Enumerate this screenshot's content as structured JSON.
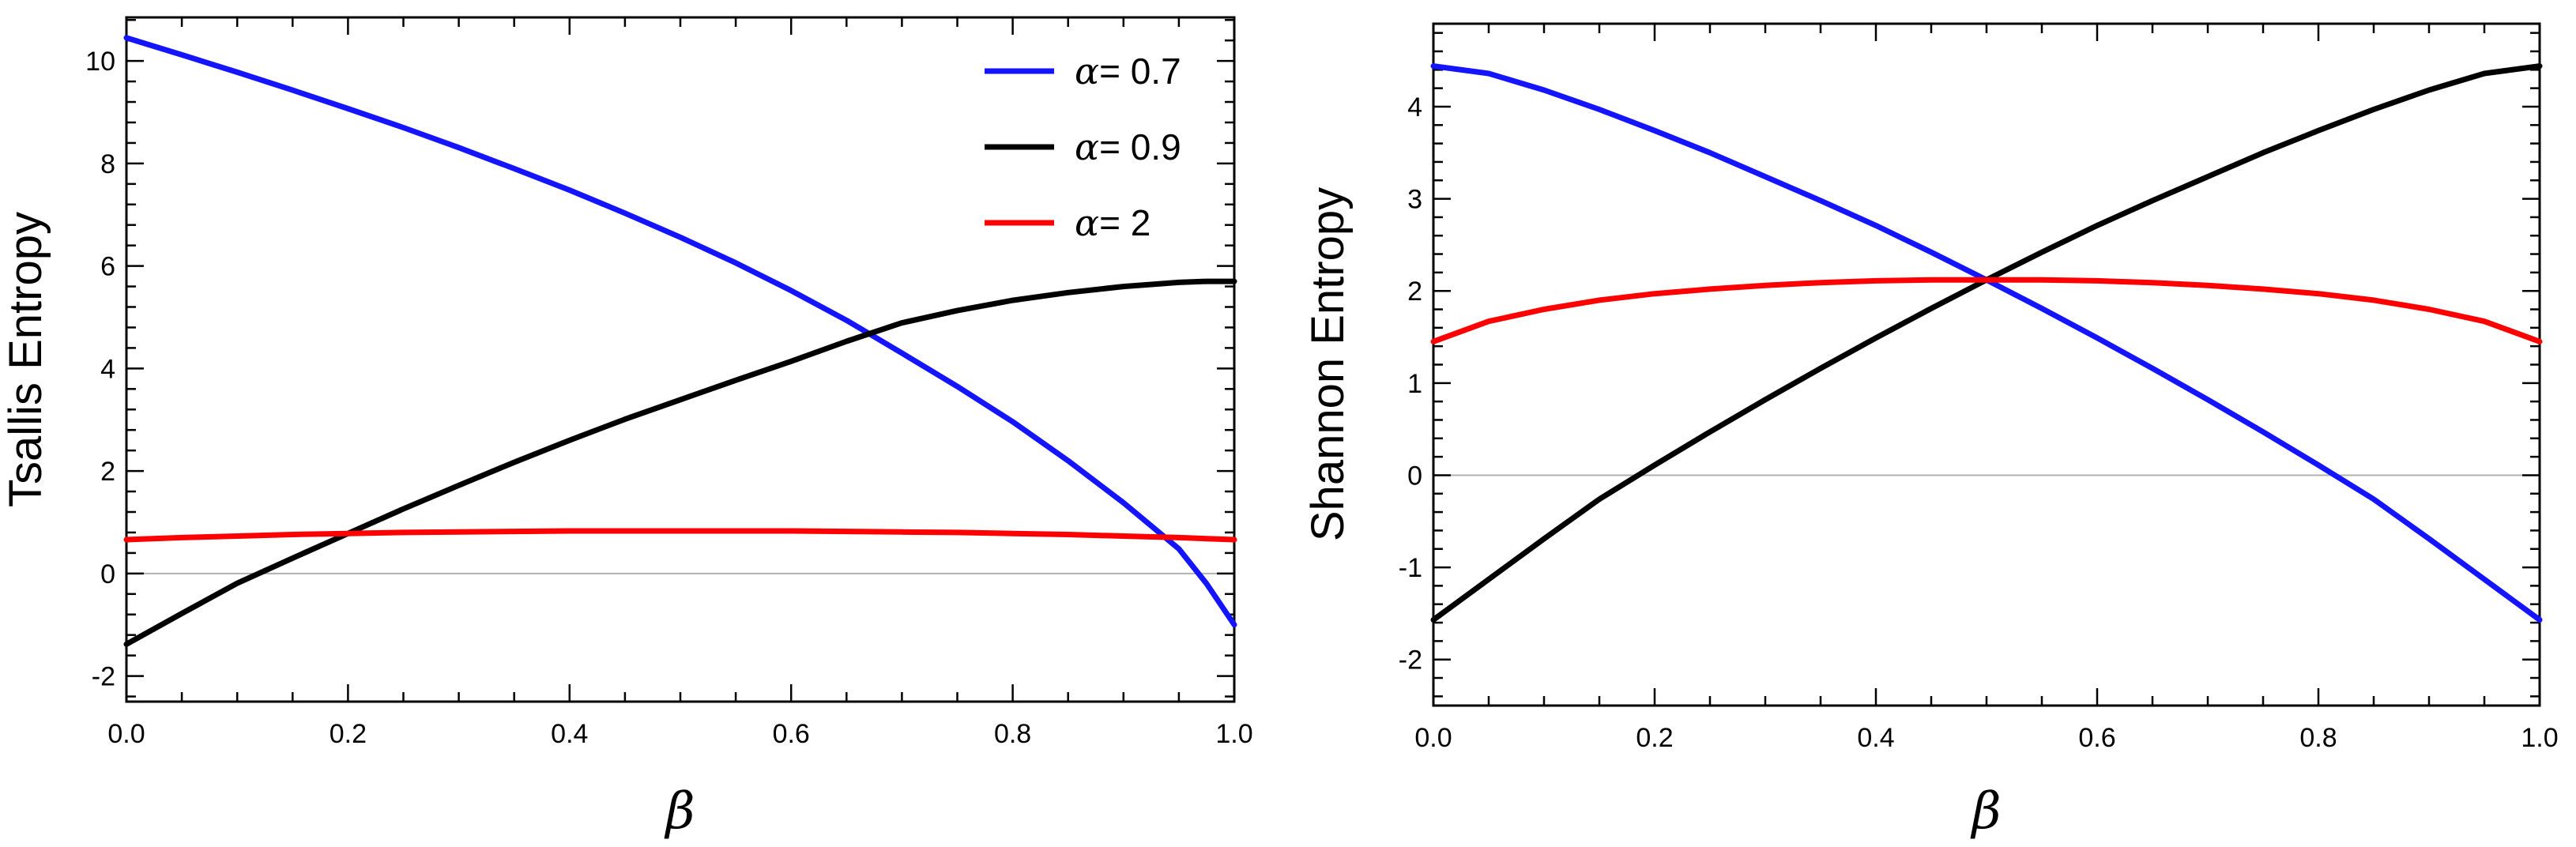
{
  "chart_data": [
    {
      "type": "line",
      "title": "",
      "xlabel": "β",
      "ylabel": "Tsallis Entropy",
      "xlim": [
        0,
        1
      ],
      "ylim": [
        -2.5,
        10.85
      ],
      "x_ticks": [
        0.0,
        0.2,
        0.4,
        0.6,
        0.8,
        1.0
      ],
      "x_tick_labels": [
        "0.0",
        "0.2",
        "0.4",
        "0.6",
        "0.8",
        "1.0"
      ],
      "y_ticks": [
        -2,
        0,
        2,
        4,
        6,
        8,
        10
      ],
      "y_tick_labels": [
        "-2",
        "0",
        "2",
        "4",
        "6",
        "8",
        "10"
      ],
      "reference_line_y": 0,
      "legend": {
        "position": "top-right",
        "symbol": "α",
        "separator": "= "
      },
      "x": [
        0.0,
        0.05,
        0.1,
        0.15,
        0.2,
        0.25,
        0.3,
        0.35,
        0.4,
        0.45,
        0.5,
        0.55,
        0.6,
        0.65,
        0.7,
        0.75,
        0.8,
        0.85,
        0.9,
        0.95,
        0.975,
        1.0
      ],
      "series": [
        {
          "name": "0.7",
          "color": "#1414ff",
          "values": [
            10.45,
            10.12,
            9.78,
            9.43,
            9.07,
            8.7,
            8.31,
            7.9,
            7.48,
            7.03,
            6.56,
            6.06,
            5.52,
            4.94,
            4.3,
            3.65,
            2.96,
            2.2,
            1.38,
            0.48,
            -0.2,
            -1.0
          ]
        },
        {
          "name": "0.9",
          "color": "#000000",
          "values": [
            -1.38,
            -0.78,
            -0.19,
            0.3,
            0.78,
            1.26,
            1.72,
            2.17,
            2.6,
            3.01,
            3.39,
            3.77,
            4.14,
            4.53,
            4.89,
            5.13,
            5.33,
            5.48,
            5.6,
            5.68,
            5.7,
            5.7
          ]
        },
        {
          "name": "2",
          "color": "#ff0000",
          "values": [
            0.66,
            0.7,
            0.73,
            0.76,
            0.78,
            0.8,
            0.81,
            0.82,
            0.83,
            0.83,
            0.83,
            0.83,
            0.83,
            0.82,
            0.81,
            0.8,
            0.78,
            0.76,
            0.73,
            0.7,
            0.68,
            0.66
          ]
        }
      ]
    },
    {
      "type": "line",
      "title": "",
      "xlabel": "β",
      "ylabel": "Shannon Entropy",
      "xlim": [
        0,
        1
      ],
      "ylim": [
        -2.5,
        4.9
      ],
      "x_ticks": [
        0.0,
        0.2,
        0.4,
        0.6,
        0.8,
        1.0
      ],
      "x_tick_labels": [
        "0.0",
        "0.2",
        "0.4",
        "0.6",
        "0.8",
        "1.0"
      ],
      "y_ticks": [
        -2,
        -1,
        0,
        1,
        2,
        3,
        4
      ],
      "y_tick_labels": [
        "-2",
        "-1",
        "0",
        "1",
        "2",
        "3",
        "4"
      ],
      "reference_line_y": 0,
      "x": [
        0.0,
        0.05,
        0.1,
        0.15,
        0.2,
        0.25,
        0.3,
        0.35,
        0.4,
        0.45,
        0.5,
        0.55,
        0.6,
        0.65,
        0.7,
        0.75,
        0.8,
        0.85,
        0.9,
        0.95,
        1.0
      ],
      "series": [
        {
          "name": "0.7",
          "color": "#1414ff",
          "values": [
            4.44,
            4.36,
            4.18,
            3.97,
            3.74,
            3.5,
            3.24,
            2.98,
            2.71,
            2.42,
            2.12,
            1.81,
            1.49,
            1.16,
            0.82,
            0.47,
            0.11,
            -0.26,
            -0.69,
            -1.13,
            -1.57
          ]
        },
        {
          "name": "0.9",
          "color": "#000000",
          "values": [
            -1.57,
            -1.13,
            -0.69,
            -0.26,
            0.11,
            0.47,
            0.82,
            1.16,
            1.49,
            1.81,
            2.12,
            2.42,
            2.71,
            2.98,
            3.24,
            3.5,
            3.74,
            3.97,
            4.18,
            4.36,
            4.44
          ]
        },
        {
          "name": "2",
          "color": "#ff0000",
          "values": [
            1.45,
            1.67,
            1.8,
            1.9,
            1.97,
            2.02,
            2.06,
            2.09,
            2.11,
            2.12,
            2.12,
            2.12,
            2.11,
            2.09,
            2.06,
            2.02,
            1.97,
            1.9,
            1.8,
            1.67,
            1.45
          ]
        }
      ]
    }
  ]
}
